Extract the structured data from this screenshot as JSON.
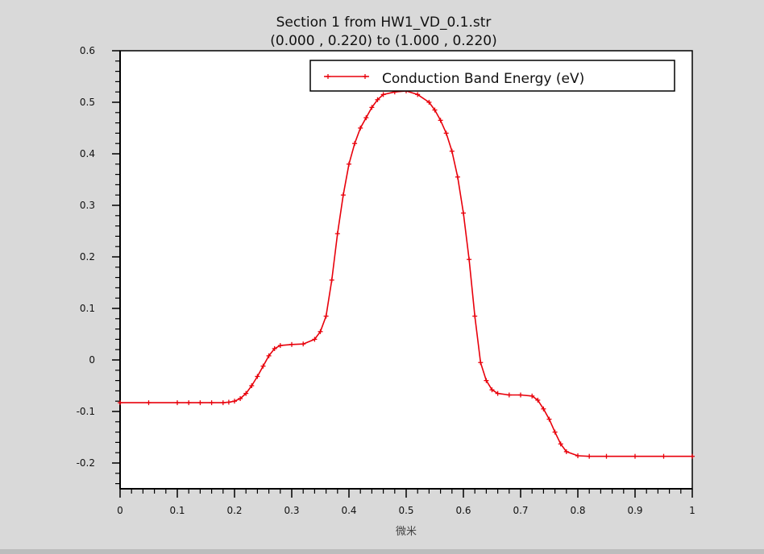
{
  "chart_data": {
    "type": "line",
    "title": "Section 1 from HW1_VD_0.1.str",
    "subtitle": "(0.000 , 0.220) to (1.000 , 0.220)",
    "xlabel": "微米",
    "ylabel": "",
    "xlim": [
      0,
      1
    ],
    "ylim": [
      -0.25,
      0.6
    ],
    "x_ticks": [
      0,
      0.1,
      0.2,
      0.3,
      0.4,
      0.5,
      0.6,
      0.7,
      0.8,
      0.9,
      1
    ],
    "x_tick_labels": [
      "0",
      "0.1",
      "0.2",
      "0.3",
      "0.4",
      "0.5",
      "0.6",
      "0.7",
      "0.8",
      "0.9",
      "1"
    ],
    "y_ticks": [
      -0.2,
      -0.1,
      0,
      0.1,
      0.2,
      0.3,
      0.4,
      0.5,
      0.6
    ],
    "y_tick_labels": [
      "-0.2",
      "-0.1",
      "0",
      "0.1",
      "0.2",
      "0.3",
      "0.4",
      "0.5",
      "0.6"
    ],
    "grid": false,
    "legend_position": "top-right",
    "series": [
      {
        "name": "Conduction Band Energy (eV)",
        "color": "#e8000b",
        "marker": "cross",
        "x": [
          0,
          0.05,
          0.1,
          0.12,
          0.14,
          0.16,
          0.18,
          0.19,
          0.2,
          0.21,
          0.22,
          0.23,
          0.24,
          0.25,
          0.26,
          0.27,
          0.28,
          0.3,
          0.32,
          0.34,
          0.35,
          0.36,
          0.37,
          0.38,
          0.39,
          0.4,
          0.41,
          0.42,
          0.43,
          0.44,
          0.45,
          0.46,
          0.48,
          0.5,
          0.52,
          0.54,
          0.55,
          0.56,
          0.57,
          0.58,
          0.59,
          0.6,
          0.61,
          0.62,
          0.63,
          0.64,
          0.65,
          0.66,
          0.68,
          0.7,
          0.72,
          0.73,
          0.74,
          0.75,
          0.76,
          0.77,
          0.78,
          0.8,
          0.82,
          0.85,
          0.9,
          0.95,
          1.0
        ],
        "y": [
          -0.083,
          -0.083,
          -0.083,
          -0.083,
          -0.083,
          -0.083,
          -0.083,
          -0.082,
          -0.08,
          -0.075,
          -0.065,
          -0.05,
          -0.032,
          -0.012,
          0.008,
          0.022,
          0.028,
          0.03,
          0.031,
          0.04,
          0.055,
          0.085,
          0.155,
          0.245,
          0.32,
          0.38,
          0.42,
          0.45,
          0.47,
          0.49,
          0.505,
          0.515,
          0.52,
          0.522,
          0.515,
          0.5,
          0.485,
          0.465,
          0.44,
          0.405,
          0.355,
          0.285,
          0.195,
          0.085,
          -0.005,
          -0.04,
          -0.058,
          -0.065,
          -0.068,
          -0.068,
          -0.07,
          -0.078,
          -0.095,
          -0.115,
          -0.14,
          -0.163,
          -0.178,
          -0.186,
          -0.187,
          -0.187,
          -0.187,
          -0.187,
          -0.187
        ]
      }
    ]
  }
}
